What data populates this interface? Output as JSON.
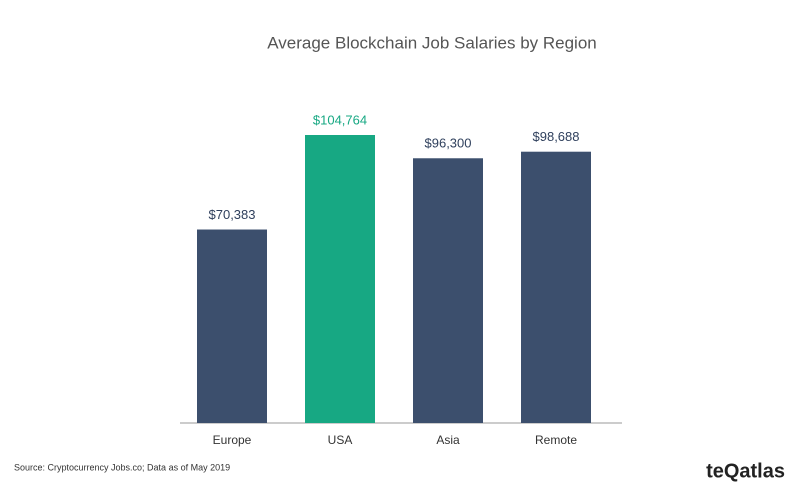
{
  "chart_data": {
    "type": "bar",
    "title": "Average Blockchain Job Salaries by Region",
    "categories": [
      "Europe",
      "USA",
      "Asia",
      "Remote"
    ],
    "values": [
      70383,
      104764,
      96300,
      98688
    ],
    "value_labels": [
      "$70,383",
      "$104,764",
      "$96,300",
      "$98,688"
    ],
    "colors": [
      "#3c4f6d",
      "#17a883",
      "#3c4f6d",
      "#3c4f6d"
    ],
    "source": "Source: Cryptocurrency Jobs.co; Data as of May 2019",
    "brand": "teQatlas"
  }
}
